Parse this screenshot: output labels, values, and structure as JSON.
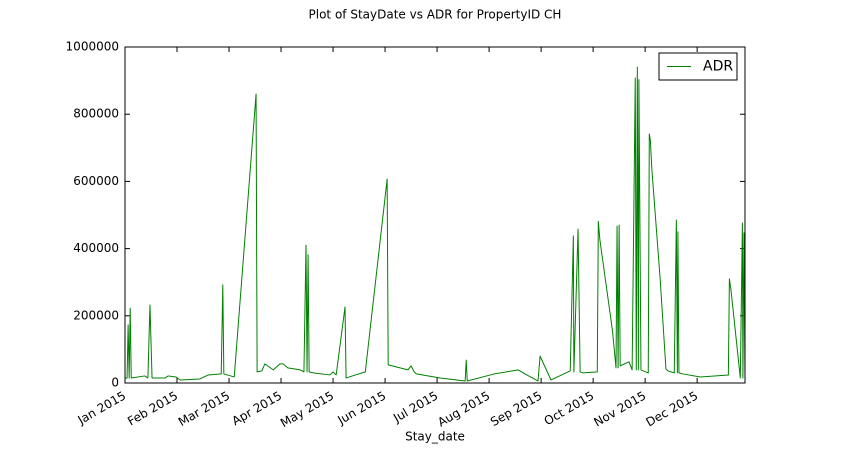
{
  "chart_data": {
    "type": "line",
    "title": "Plot of StayDate vs ADR for PropertyID CH",
    "x_label": "Stay_date",
    "x": [
      0.0,
      0.04,
      0.06,
      0.08,
      0.1,
      0.12,
      0.38,
      0.44,
      0.48,
      0.52,
      0.77,
      0.83,
      0.98,
      1.06,
      1.44,
      1.6,
      1.85,
      1.88,
      1.9,
      2.1,
      2.52,
      2.54,
      2.63,
      2.69,
      2.85,
      2.98,
      3.04,
      3.13,
      3.37,
      3.44,
      3.48,
      3.5,
      3.52,
      3.54,
      3.62,
      3.94,
      4.0,
      4.06,
      4.23,
      4.25,
      4.62,
      5.04,
      5.06,
      5.44,
      5.5,
      5.56,
      5.6,
      6.06,
      6.54,
      6.56,
      6.58,
      7.1,
      7.56,
      7.69,
      7.94,
      7.98,
      8.19,
      8.56,
      8.62,
      8.63,
      8.71,
      8.75,
      8.81,
      9.08,
      9.1,
      9.13,
      9.37,
      9.44,
      9.46,
      9.48,
      9.5,
      9.52,
      9.69,
      9.75,
      9.81,
      9.83,
      9.85,
      9.87,
      9.88,
      9.92,
      10.06,
      10.08,
      10.1,
      10.13,
      10.29,
      10.4,
      10.44,
      10.56,
      10.6,
      10.62,
      10.63,
      10.65,
      10.73,
      11.06,
      11.6,
      11.62,
      11.65,
      11.83,
      11.87,
      11.88,
      11.9,
      11.92
    ],
    "series": [
      {
        "name": "ADR",
        "color": "#008000",
        "values": [
          15000,
          15000,
          173000,
          15000,
          223000,
          15000,
          21000,
          15000,
          232000,
          15000,
          15000,
          21000,
          18000,
          9000,
          12000,
          24000,
          27000,
          292000,
          27000,
          18000,
          860000,
          33000,
          36000,
          57000,
          39000,
          57000,
          57000,
          45000,
          39000,
          33000,
          410000,
          33000,
          382000,
          33000,
          30000,
          24000,
          33000,
          24000,
          226000,
          15000,
          33000,
          607000,
          54000,
          39000,
          51000,
          33000,
          27000,
          15000,
          6000,
          68000,
          6000,
          27000,
          39000,
          27000,
          6000,
          80000,
          9000,
          36000,
          438000,
          33000,
          458000,
          33000,
          30000,
          33000,
          481000,
          426000,
          158000,
          45000,
          467000,
          45000,
          470000,
          51000,
          63000,
          39000,
          908000,
          39000,
          940000,
          39000,
          903000,
          39000,
          30000,
          741000,
          723000,
          634000,
          307000,
          42000,
          36000,
          30000,
          485000,
          30000,
          450000,
          30000,
          27000,
          18000,
          24000,
          310000,
          277000,
          15000,
          476000,
          15000,
          447000,
          15000
        ]
      }
    ],
    "xlim": [
      0,
      11.92
    ],
    "xticks": [
      {
        "value": 0,
        "label": "Jan 2015"
      },
      {
        "value": 1,
        "label": "Feb 2015"
      },
      {
        "value": 2,
        "label": "Mar 2015"
      },
      {
        "value": 3,
        "label": "Apr 2015"
      },
      {
        "value": 4,
        "label": "May 2015"
      },
      {
        "value": 5,
        "label": "Jun 2015"
      },
      {
        "value": 6,
        "label": "Jul 2015"
      },
      {
        "value": 7,
        "label": "Aug 2015"
      },
      {
        "value": 8,
        "label": "Sep 2015"
      },
      {
        "value": 9,
        "label": "Oct 2015"
      },
      {
        "value": 10,
        "label": "Nov 2015"
      },
      {
        "value": 11,
        "label": "Dec 2015"
      }
    ],
    "ylim": [
      0,
      1000000
    ],
    "yticks": [
      0,
      200000,
      400000,
      600000,
      800000,
      1000000
    ],
    "legend": "upper right",
    "grid": false
  }
}
